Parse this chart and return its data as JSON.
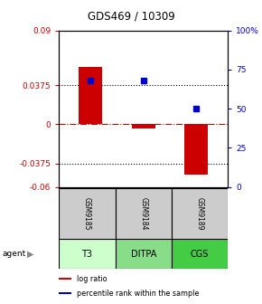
{
  "title": "GDS469 / 10309",
  "categories": [
    "T3",
    "DITPA",
    "CGS"
  ],
  "sample_ids": [
    "GSM9185",
    "GSM9184",
    "GSM9189"
  ],
  "log_ratios": [
    0.055,
    -0.004,
    -0.048
  ],
  "percentile_ranks": [
    68,
    68,
    50
  ],
  "bar_color": "#cc0000",
  "dot_color": "#0000cc",
  "ylim_left": [
    -0.06,
    0.09
  ],
  "ylim_right": [
    0,
    100
  ],
  "yticks_left": [
    -0.06,
    -0.0375,
    0,
    0.0375,
    0.09
  ],
  "yticks_right": [
    0,
    25,
    50,
    75,
    100
  ],
  "ytick_labels_left": [
    "-0.06",
    "-0.0375",
    "0",
    "0.0375",
    "0.09"
  ],
  "ytick_labels_right": [
    "0",
    "25",
    "50",
    "75",
    "100%"
  ],
  "hlines": [
    0.0375,
    -0.0375
  ],
  "zero_line": 0.0,
  "cell_colors_gsm": [
    "#cccccc",
    "#cccccc",
    "#cccccc"
  ],
  "cell_colors_agent": [
    "#ccffcc",
    "#88dd88",
    "#44cc44"
  ],
  "agent_label": "agent",
  "legend_items": [
    {
      "color": "#cc0000",
      "label": "log ratio"
    },
    {
      "color": "#0000cc",
      "label": "percentile rank within the sample"
    }
  ],
  "background_color": "#ffffff",
  "bar_width": 0.45
}
